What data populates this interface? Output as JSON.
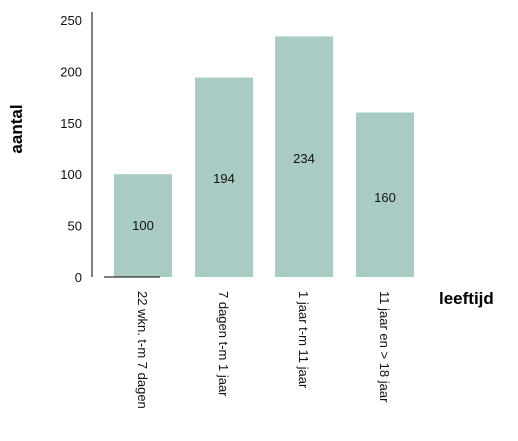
{
  "chart_data": {
    "type": "bar",
    "title": "",
    "xlabel": "leeftijd",
    "ylabel": "aantal",
    "categories": [
      "22 wkn. t-m 7 dagen",
      "7 dagen t-m 1 jaar",
      "1 jaar t-m 11 jaar",
      "11 jaar en > 18 jaar"
    ],
    "values": [
      100,
      194,
      234,
      160
    ],
    "data_labels": [
      "100",
      "194",
      "234",
      "160"
    ],
    "yticks": [
      0,
      50,
      100,
      150,
      200,
      250
    ],
    "ylim": [
      0,
      250
    ],
    "grid": false,
    "legend": "none",
    "bar_color": "#a8ccc4"
  }
}
